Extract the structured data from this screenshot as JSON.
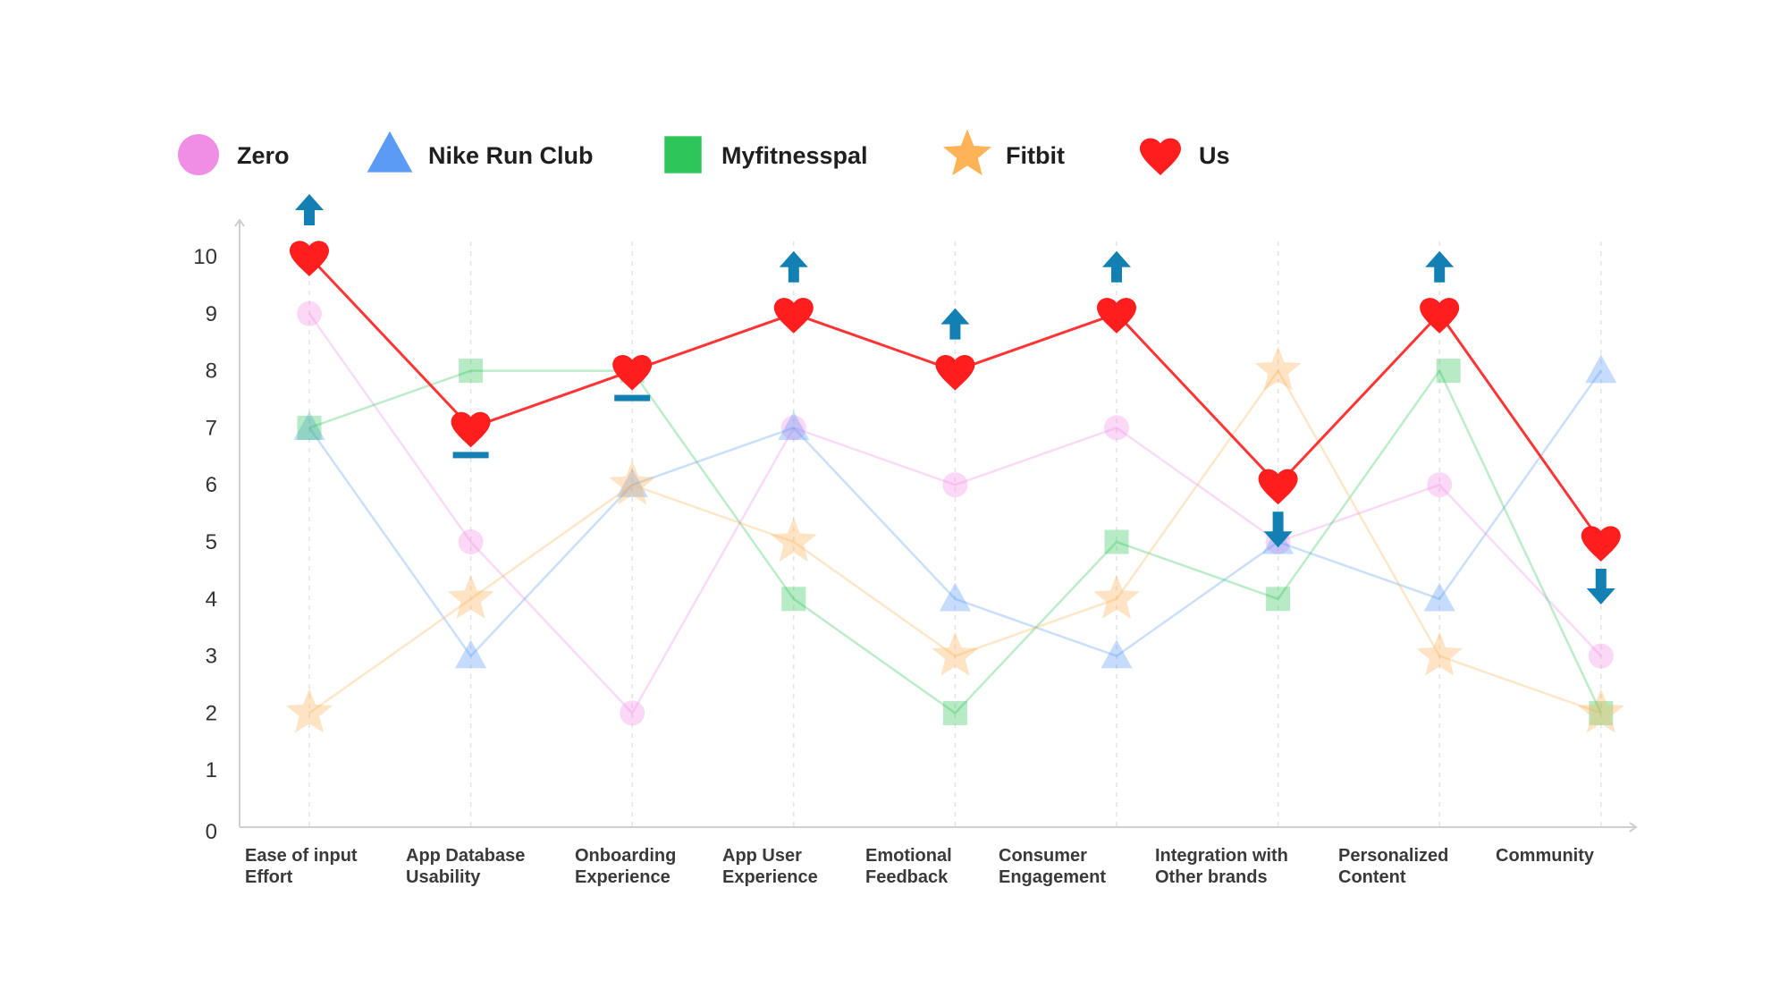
{
  "chart_data": {
    "type": "line",
    "title": "",
    "xlabel": "",
    "ylabel": "",
    "ylim": [
      0,
      10
    ],
    "yticks": [
      0,
      1,
      2,
      3,
      4,
      5,
      6,
      7,
      8,
      9,
      10
    ],
    "grid": "vertical dashed",
    "legend_position": "top",
    "categories": [
      [
        "Ease of input",
        "Effort"
      ],
      [
        "App Database",
        "Usability"
      ],
      [
        "Onboarding",
        "Experience"
      ],
      [
        "App User",
        "Experience"
      ],
      [
        "Emotional",
        "Feedback"
      ],
      [
        "Consumer",
        "Engagement"
      ],
      [
        "Integration with",
        "Other brands"
      ],
      [
        "Personalized",
        "Content"
      ],
      [
        "Community"
      ]
    ],
    "series": [
      {
        "name": "Zero",
        "marker": "circle",
        "color": "#f08ee6",
        "values": [
          9,
          5,
          2,
          7,
          6,
          7,
          5,
          6,
          3
        ]
      },
      {
        "name": "Nike Run Club",
        "marker": "triangle",
        "color": "#5b9bf5",
        "values": [
          7,
          3,
          6,
          7,
          4,
          3,
          5,
          4,
          8
        ]
      },
      {
        "name": "Myfitnesspal",
        "marker": "square",
        "color": "#2ec55a",
        "values": [
          7,
          8,
          8,
          4,
          2,
          5,
          4,
          8,
          2
        ]
      },
      {
        "name": "Fitbit",
        "marker": "star",
        "color": "#fdb356",
        "values": [
          2,
          4,
          6,
          5,
          3,
          4,
          8,
          3,
          2
        ]
      },
      {
        "name": "Us",
        "marker": "heart",
        "color": "#ff1e1e",
        "values": [
          10,
          7,
          8,
          9,
          8,
          9,
          6,
          9,
          5
        ]
      }
    ],
    "indicator_color": "#1280b3",
    "indicators": [
      "up",
      "flat",
      "flat",
      "up",
      "up",
      "up",
      "down",
      "up",
      "down"
    ]
  }
}
